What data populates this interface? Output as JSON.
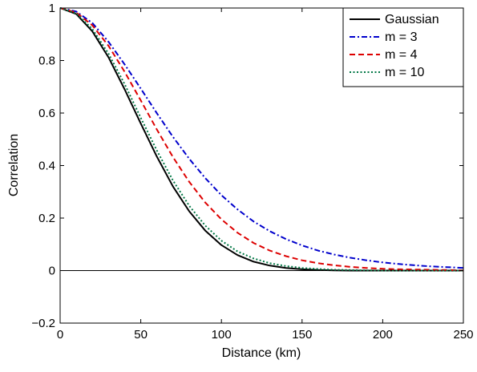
{
  "chart_data": {
    "type": "line",
    "xlabel": "Distance (km)",
    "ylabel": "Correlation",
    "xlim": [
      0,
      250
    ],
    "ylim": [
      -0.2,
      1
    ],
    "xticks": [
      0,
      50,
      100,
      150,
      200,
      250
    ],
    "yticks": [
      -0.2,
      0,
      0.2,
      0.4,
      0.6,
      0.8,
      1
    ],
    "xtick_labels": [
      "0",
      "50",
      "100",
      "150",
      "200",
      "250"
    ],
    "ytick_labels": [
      "−0.2",
      "0",
      "0.2",
      "0.4",
      "0.6",
      "0.8",
      "1"
    ],
    "grid": false,
    "zero_line": true,
    "legend_position": "top-right",
    "x": [
      0,
      10,
      20,
      30,
      40,
      50,
      60,
      70,
      80,
      90,
      100,
      110,
      120,
      130,
      140,
      150,
      160,
      170,
      180,
      190,
      200,
      210,
      220,
      230,
      240,
      250
    ],
    "series": [
      {
        "name": "Gaussian",
        "color": "#000000",
        "dash": "solid",
        "values": [
          1.0,
          0.977,
          0.911,
          0.812,
          0.69,
          0.56,
          0.434,
          0.32,
          0.226,
          0.152,
          0.097,
          0.059,
          0.034,
          0.019,
          0.01,
          0.005,
          0.002,
          0.001,
          0.0,
          0.0,
          0.0,
          0.0,
          0.0,
          0.0,
          0.0,
          0.0
        ]
      },
      {
        "name": "m = 3",
        "color": "#0000cc",
        "dash": "dashdot",
        "values": [
          1.0,
          0.987,
          0.943,
          0.871,
          0.785,
          0.693,
          0.599,
          0.509,
          0.426,
          0.352,
          0.287,
          0.233,
          0.187,
          0.15,
          0.12,
          0.096,
          0.076,
          0.061,
          0.049,
          0.039,
          0.031,
          0.025,
          0.02,
          0.016,
          0.013,
          0.01
        ]
      },
      {
        "name": "m = 4",
        "color": "#dd0000",
        "dash": "dashed",
        "values": [
          1.0,
          0.983,
          0.934,
          0.856,
          0.757,
          0.648,
          0.537,
          0.432,
          0.338,
          0.259,
          0.195,
          0.144,
          0.105,
          0.076,
          0.055,
          0.039,
          0.028,
          0.02,
          0.014,
          0.01,
          0.007,
          0.005,
          0.004,
          0.003,
          0.002,
          0.001
        ]
      },
      {
        "name": "m = 10",
        "color": "#007744",
        "dash": "dotted",
        "values": [
          1.0,
          0.98,
          0.92,
          0.826,
          0.71,
          0.582,
          0.457,
          0.343,
          0.247,
          0.171,
          0.114,
          0.073,
          0.046,
          0.028,
          0.017,
          0.01,
          0.006,
          0.003,
          0.002,
          0.001,
          0.0,
          0.0,
          0.0,
          0.0,
          0.0,
          0.0
        ]
      }
    ]
  }
}
